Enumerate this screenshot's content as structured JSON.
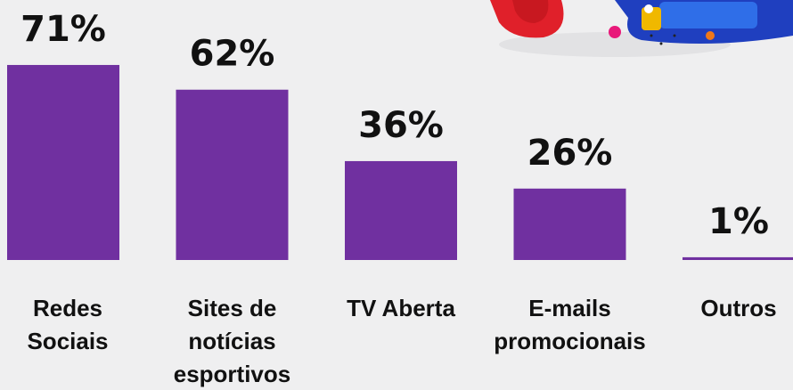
{
  "chart_data": {
    "type": "bar",
    "categories": [
      "Redes Sociais",
      "Sites de notícias esportivos",
      "TV Aberta",
      "E-mails promocionais",
      "Outros"
    ],
    "values": [
      71,
      62,
      36,
      26,
      1
    ],
    "value_labels": [
      "71%",
      "62%",
      "36%",
      "26%",
      "1%"
    ],
    "color": "#7030a0"
  }
}
